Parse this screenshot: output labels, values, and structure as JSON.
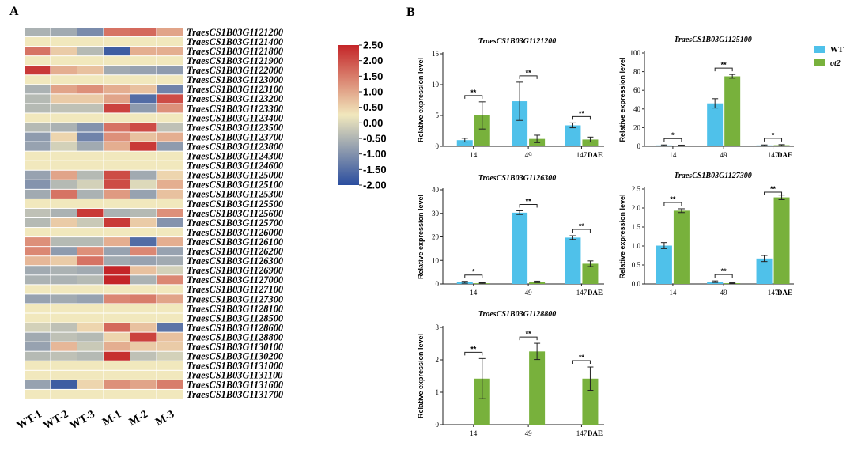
{
  "panels": {
    "a_label": "A",
    "b_label": "B"
  },
  "colors": {
    "wt": "#4fc1ea",
    "ot2": "#78b13c",
    "axis": "#222222"
  },
  "legend": {
    "items": [
      {
        "label": "WT",
        "color": "#4fc1ea"
      },
      {
        "label": "ot2",
        "color": "#78b13c"
      }
    ]
  },
  "chart_data": [
    {
      "type": "heatmap",
      "title": "",
      "columns": [
        "WT-1",
        "WT-2",
        "WT-3",
        "M-1",
        "M-2",
        "M-3"
      ],
      "rows": [
        "TraesCS1B03G1121200",
        "TraesCS1B03G1121400",
        "TraesCS1B03G1121800",
        "TraesCS1B03G1121900",
        "TraesCS1B03G1122000",
        "TraesCS1B03G1123000",
        "TraesCS1B03G1123100",
        "TraesCS1B03G1123200",
        "TraesCS1B03G1123300",
        "TraesCS1B03G1123400",
        "TraesCS1B03G1123500",
        "TraesCS1B03G1123700",
        "TraesCS1B03G1123800",
        "TraesCS1B03G1124300",
        "TraesCS1B03G1124600",
        "TraesCS1B03G1125000",
        "TraesCS1B03G1125100",
        "TraesCS1B03G1125300",
        "TraesCS1B03G1125500",
        "TraesCS1B03G1125600",
        "TraesCS1B03G1125700",
        "TraesCS1B03G1126000",
        "TraesCS1B03G1126100",
        "TraesCS1B03G1126200",
        "TraesCS1B03G1126300",
        "TraesCS1B03G1126900",
        "TraesCS1B03G1127000",
        "TraesCS1B03G1127100",
        "TraesCS1B03G1127300",
        "TraesCS1B03G1128100",
        "TraesCS1B03G1128500",
        "TraesCS1B03G1128600",
        "TraesCS1B03G1128800",
        "TraesCS1B03G1130100",
        "TraesCS1B03G1130200",
        "TraesCS1B03G1131000",
        "TraesCS1B03G1131100",
        "TraesCS1B03G1131600",
        "TraesCS1B03G1131700"
      ],
      "values": [
        [
          -0.7,
          -0.8,
          -1.2,
          1.2,
          1.3,
          0.7
        ],
        [
          0,
          0,
          0,
          0,
          0,
          0
        ],
        [
          1.2,
          0.3,
          -0.6,
          -1.8,
          0.6,
          0.6
        ],
        [
          0,
          0,
          0,
          0,
          0,
          0
        ],
        [
          1.8,
          0.6,
          0.4,
          -0.8,
          -0.9,
          -1.0
        ],
        [
          0,
          0,
          0,
          0,
          0,
          0
        ],
        [
          -0.7,
          0.7,
          0.9,
          0.6,
          0.4,
          -1.3
        ],
        [
          -0.6,
          0.3,
          0.3,
          0.7,
          -1.6,
          1.6
        ],
        [
          -0.6,
          -0.5,
          -0.5,
          1.7,
          -1.0,
          0.9
        ],
        [
          0,
          0,
          0,
          0,
          0,
          0
        ],
        [
          -0.6,
          -0.7,
          -1.1,
          1.2,
          1.6,
          -0.5
        ],
        [
          -1.0,
          0.2,
          -1.3,
          0.9,
          0.4,
          0.6
        ],
        [
          -0.9,
          -0.3,
          -0.8,
          0.6,
          1.8,
          -1.0
        ],
        [
          0,
          0,
          0,
          0,
          0,
          0
        ],
        [
          0,
          0,
          0,
          0,
          0,
          0
        ],
        [
          -0.9,
          0.7,
          -0.6,
          1.6,
          -0.8,
          0.2
        ],
        [
          -1.1,
          -0.6,
          -0.3,
          1.6,
          -0.2,
          0.6
        ],
        [
          -0.8,
          1.2,
          -0.7,
          0.8,
          -0.9,
          0.4
        ],
        [
          0,
          0,
          0,
          0,
          0,
          0
        ],
        [
          -0.5,
          -0.7,
          1.8,
          -0.7,
          -0.6,
          0.9
        ],
        [
          -0.6,
          0.3,
          -0.4,
          1.8,
          0.3,
          -1.1
        ],
        [
          0,
          0,
          0,
          0,
          0,
          0
        ],
        [
          0.9,
          -0.6,
          -0.6,
          0.6,
          -1.6,
          0.6
        ],
        [
          1.0,
          -1.0,
          0.9,
          -0.9,
          1.0,
          -0.9
        ],
        [
          0.5,
          0.3,
          1.2,
          -0.8,
          -0.9,
          -0.8
        ],
        [
          -0.8,
          -0.7,
          -0.8,
          2.0,
          0.4,
          -0.3
        ],
        [
          -0.7,
          -0.7,
          -0.6,
          2.0,
          -0.7,
          1.0
        ],
        [
          0,
          0,
          0,
          0,
          0,
          0
        ],
        [
          -0.9,
          -0.8,
          -0.9,
          1.0,
          1.1,
          0.7
        ],
        [
          0,
          0,
          0,
          0,
          0,
          0
        ],
        [
          0,
          0,
          0,
          0,
          0,
          0
        ],
        [
          -0.3,
          -0.5,
          0.2,
          1.3,
          0.4,
          -1.5
        ],
        [
          -0.8,
          -0.5,
          -0.6,
          0.2,
          1.7,
          0.4
        ],
        [
          -0.9,
          0.5,
          -0.4,
          0.6,
          0.3,
          0.3
        ],
        [
          -0.6,
          -0.5,
          -0.6,
          1.9,
          -0.5,
          -0.3
        ],
        [
          0,
          0,
          0,
          0,
          0,
          0
        ],
        [
          0,
          0,
          0,
          0,
          0,
          0
        ],
        [
          -0.9,
          -1.8,
          0.2,
          0.9,
          0.7,
          1.1
        ],
        [
          0,
          0,
          0,
          0,
          0,
          0
        ]
      ],
      "colorbar": {
        "min": -2.0,
        "max": 2.5,
        "ticks": [
          "2.50",
          "2.00",
          "1.50",
          "1.00",
          "0.50",
          "0.00",
          "-0.50",
          "-1.00",
          "-1.50",
          "-2.00"
        ],
        "colors": [
          "#2a4d9f",
          "#f1e8bd",
          "#c42528"
        ]
      }
    },
    {
      "type": "bar",
      "title": "TraesCS1B03G1121200",
      "ylabel": "Relative expression level",
      "categories": [
        "14",
        "49",
        "147"
      ],
      "xunit": "DAE",
      "ylim": [
        0,
        15
      ],
      "yticks": [
        "0",
        "5",
        "10",
        "15"
      ],
      "series": [
        {
          "name": "WT",
          "values": [
            1.0,
            7.3,
            3.4
          ],
          "errors": [
            0.3,
            3.1,
            0.4
          ]
        },
        {
          "name": "ot2",
          "values": [
            5.0,
            1.2,
            1.1
          ],
          "errors": [
            2.2,
            0.6,
            0.4
          ]
        }
      ],
      "significance": [
        "**",
        "**",
        "**"
      ]
    },
    {
      "type": "bar",
      "title": "TraesCS1B03G1125100",
      "ylabel": "Relative expression level",
      "categories": [
        "14",
        "49",
        "147"
      ],
      "xunit": "DAE",
      "ylim": [
        0,
        100
      ],
      "yticks": [
        "0",
        "20",
        "40",
        "60",
        "80",
        "100"
      ],
      "series": [
        {
          "name": "WT",
          "values": [
            1,
            46,
            1
          ],
          "errors": [
            0.5,
            5,
            0.5
          ]
        },
        {
          "name": "ot2",
          "values": [
            0.8,
            75,
            1.2
          ],
          "errors": [
            0.5,
            2,
            0.6
          ]
        }
      ],
      "significance": [
        "*",
        "**",
        "*"
      ]
    },
    {
      "type": "bar",
      "title": "TraesCS1B03G1126300",
      "ylabel": "Relative expression level",
      "categories": [
        "14",
        "49",
        "147"
      ],
      "xunit": "DAE",
      "ylim": [
        0,
        40
      ],
      "yticks": [
        "0",
        "10",
        "20",
        "30",
        "40"
      ],
      "series": [
        {
          "name": "WT",
          "values": [
            0.7,
            30.3,
            19.7
          ],
          "errors": [
            0.4,
            0.8,
            0.8
          ]
        },
        {
          "name": "ot2",
          "values": [
            0.3,
            0.9,
            8.6
          ],
          "errors": [
            0.2,
            0.3,
            1.2
          ]
        }
      ],
      "significance": [
        "*",
        "**",
        "**"
      ]
    },
    {
      "type": "bar",
      "title": "TraesCS1B03G1127300",
      "ylabel": "Relative expression level",
      "categories": [
        "14",
        "49",
        "147"
      ],
      "xunit": "DAE",
      "ylim": [
        0,
        2.5
      ],
      "yticks": [
        "0.0",
        "0.5",
        "1.0",
        "1.5",
        "2.0",
        "2.5"
      ],
      "series": [
        {
          "name": "WT",
          "values": [
            1.01,
            0.06,
            0.67
          ],
          "errors": [
            0.08,
            0.02,
            0.08
          ]
        },
        {
          "name": "ot2",
          "values": [
            1.93,
            0.02,
            2.28
          ],
          "errors": [
            0.05,
            0.01,
            0.06
          ]
        }
      ],
      "significance": [
        "**",
        "**",
        "**"
      ]
    },
    {
      "type": "bar",
      "title": "TraesCS1B03G1128800",
      "ylabel": "Relative expression level",
      "categories": [
        "14",
        "49",
        "147"
      ],
      "xunit": "DAE",
      "ylim": [
        0,
        3
      ],
      "yticks": [
        "0",
        "1",
        "2",
        "3"
      ],
      "series": [
        {
          "name": "WT",
          "values": [
            0,
            0,
            0
          ],
          "errors": [
            0,
            0,
            0
          ]
        },
        {
          "name": "ot2",
          "values": [
            1.42,
            2.26,
            1.42
          ],
          "errors": [
            0.62,
            0.25,
            0.36
          ]
        }
      ],
      "significance": [
        "**",
        "**",
        "**"
      ]
    }
  ]
}
